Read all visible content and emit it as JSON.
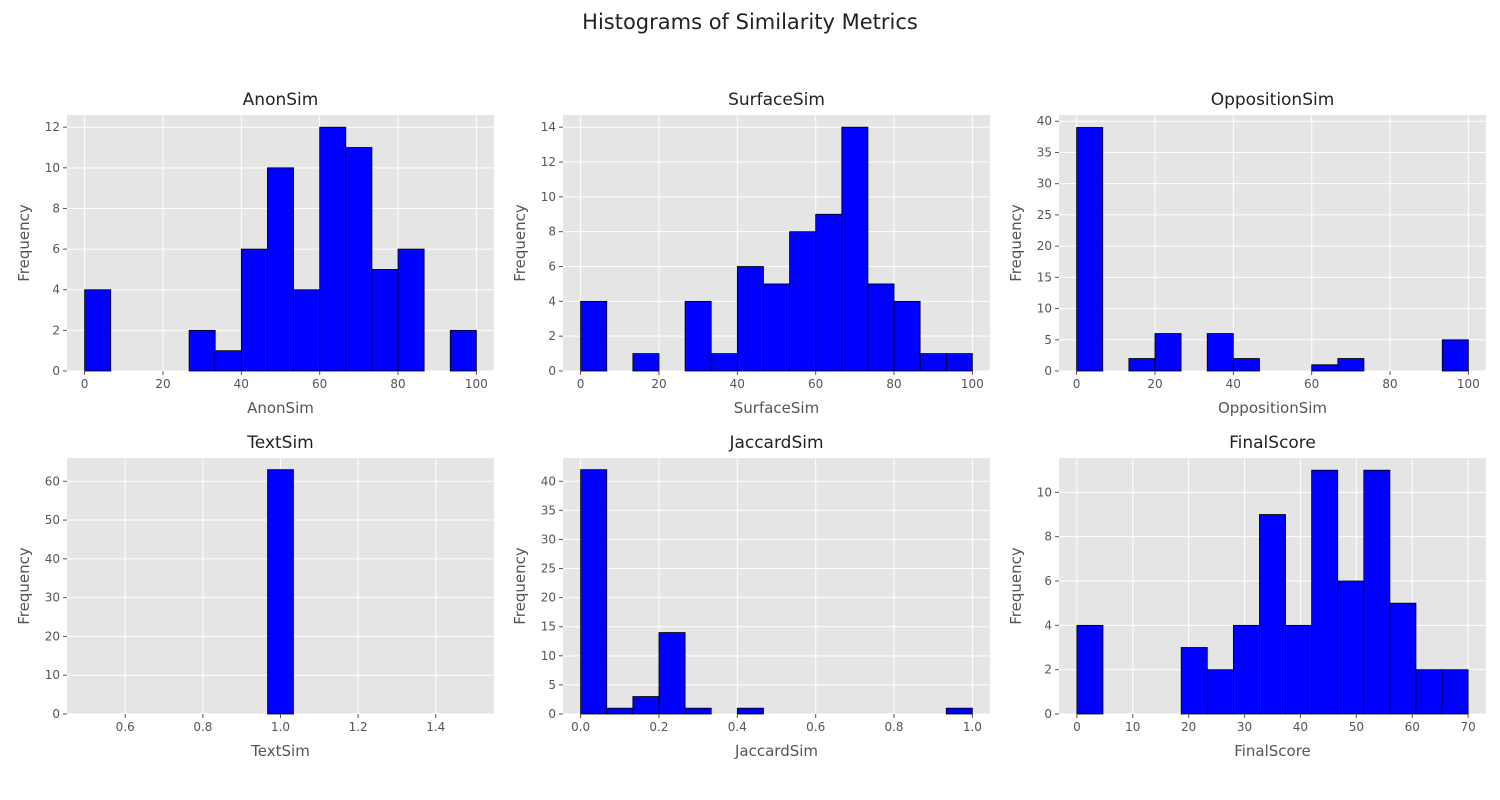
{
  "suptitle": "Histograms of Similarity Metrics",
  "colors": {
    "bar_fill": "#0000ff",
    "bar_edge": "#000000",
    "plot_bg": "#e5e5e5",
    "grid": "#ffffff",
    "tick_text": "#555555",
    "title_text": "#222222"
  },
  "chart_data": [
    {
      "type": "bar",
      "title": "AnonSim",
      "xlabel": "AnonSim",
      "ylabel": "Frequency",
      "xlim": [
        -4.5,
        104.5
      ],
      "ylim": [
        0,
        12.6
      ],
      "xticks": [
        0,
        20,
        40,
        60,
        80,
        100
      ],
      "xtick_labels": [
        "0",
        "20",
        "40",
        "60",
        "80",
        "100"
      ],
      "yticks": [
        0,
        2,
        4,
        6,
        8,
        10,
        12
      ],
      "ytick_labels": [
        "0",
        "2",
        "4",
        "6",
        "8",
        "10",
        "12"
      ],
      "bin_start": 0,
      "bin_width": 6.6667,
      "values": [
        4,
        0,
        0,
        0,
        2,
        1,
        6,
        10,
        4,
        12,
        11,
        5,
        6,
        0,
        2
      ]
    },
    {
      "type": "bar",
      "title": "SurfaceSim",
      "xlabel": "SurfaceSim",
      "ylabel": "Frequency",
      "xlim": [
        -4.5,
        104.5
      ],
      "ylim": [
        0,
        14.7
      ],
      "xticks": [
        0,
        20,
        40,
        60,
        80,
        100
      ],
      "xtick_labels": [
        "0",
        "20",
        "40",
        "60",
        "80",
        "100"
      ],
      "yticks": [
        0,
        2,
        4,
        6,
        8,
        10,
        12,
        14
      ],
      "ytick_labels": [
        "0",
        "2",
        "4",
        "6",
        "8",
        "10",
        "12",
        "14"
      ],
      "bin_start": 0,
      "bin_width": 6.6667,
      "values": [
        4,
        0,
        1,
        0,
        4,
        1,
        6,
        5,
        8,
        9,
        14,
        5,
        4,
        1,
        1
      ]
    },
    {
      "type": "bar",
      "title": "OppositionSim",
      "xlabel": "OppositionSim",
      "ylabel": "Frequency",
      "xlim": [
        -4.5,
        104.5
      ],
      "ylim": [
        0,
        41
      ],
      "xticks": [
        0,
        20,
        40,
        60,
        80,
        100
      ],
      "xtick_labels": [
        "0",
        "20",
        "40",
        "60",
        "80",
        "100"
      ],
      "yticks": [
        0,
        5,
        10,
        15,
        20,
        25,
        30,
        35,
        40
      ],
      "ytick_labels": [
        "0",
        "5",
        "10",
        "15",
        "20",
        "25",
        "30",
        "35",
        "40"
      ],
      "bin_start": 0,
      "bin_width": 6.6667,
      "values": [
        39,
        0,
        2,
        6,
        0,
        6,
        2,
        0,
        0,
        1,
        2,
        0,
        0,
        0,
        5
      ]
    },
    {
      "type": "bar",
      "title": "TextSim",
      "xlabel": "TextSim",
      "ylabel": "Frequency",
      "xlim": [
        0.45,
        1.55
      ],
      "ylim": [
        0,
        66
      ],
      "xticks": [
        0.6,
        0.8,
        1.0,
        1.2,
        1.4
      ],
      "xtick_labels": [
        "0.6",
        "0.8",
        "1.0",
        "1.2",
        "1.4"
      ],
      "yticks": [
        0,
        10,
        20,
        30,
        40,
        50,
        60
      ],
      "ytick_labels": [
        "0",
        "10",
        "20",
        "30",
        "40",
        "50",
        "60"
      ],
      "bin_start": 0.5,
      "bin_width": 0.066667,
      "values": [
        0,
        0,
        0,
        0,
        0,
        0,
        0,
        63,
        0,
        0,
        0,
        0,
        0,
        0,
        0
      ]
    },
    {
      "type": "bar",
      "title": "JaccardSim",
      "xlabel": "JaccardSim",
      "ylabel": "Frequency",
      "xlim": [
        -0.045,
        1.045
      ],
      "ylim": [
        0,
        44
      ],
      "xticks": [
        0.0,
        0.2,
        0.4,
        0.6,
        0.8,
        1.0
      ],
      "xtick_labels": [
        "0.0",
        "0.2",
        "0.4",
        "0.6",
        "0.8",
        "1.0"
      ],
      "yticks": [
        0,
        5,
        10,
        15,
        20,
        25,
        30,
        35,
        40
      ],
      "ytick_labels": [
        "0",
        "5",
        "10",
        "15",
        "20",
        "25",
        "30",
        "35",
        "40"
      ],
      "bin_start": 0,
      "bin_width": 0.066667,
      "values": [
        42,
        1,
        3,
        14,
        1,
        0,
        1,
        0,
        0,
        0,
        0,
        0,
        0,
        0,
        1
      ]
    },
    {
      "type": "bar",
      "title": "FinalScore",
      "xlabel": "FinalScore",
      "ylabel": "Frequency",
      "xlim": [
        -3.2,
        73.2
      ],
      "ylim": [
        0,
        11.55
      ],
      "xticks": [
        0,
        10,
        20,
        30,
        40,
        50,
        60,
        70
      ],
      "xtick_labels": [
        "0",
        "10",
        "20",
        "30",
        "40",
        "50",
        "60",
        "70"
      ],
      "yticks": [
        0,
        2,
        4,
        6,
        8,
        10
      ],
      "ytick_labels": [
        "0",
        "2",
        "4",
        "6",
        "8",
        "10"
      ],
      "bin_start": 0,
      "bin_width": 4.6667,
      "values": [
        4,
        0,
        0,
        0,
        3,
        2,
        4,
        9,
        4,
        11,
        6,
        11,
        5,
        2,
        2
      ]
    }
  ]
}
